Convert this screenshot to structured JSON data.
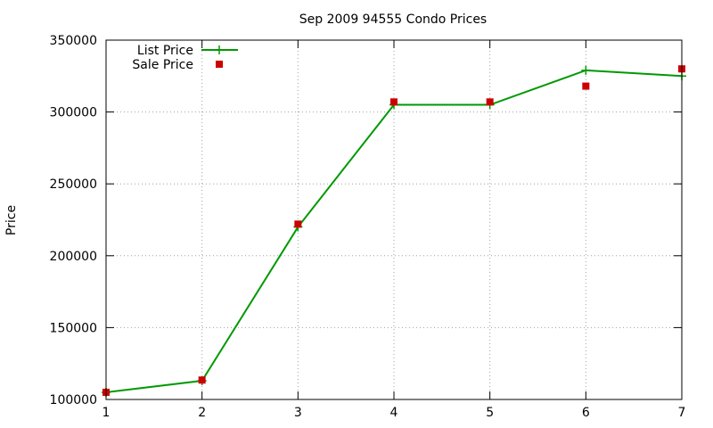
{
  "chart_data": {
    "type": "line",
    "title": "Sep 2009 94555 Condo Prices",
    "xlabel": "",
    "ylabel": "Price",
    "x": [
      1,
      2,
      3,
      4,
      5,
      6,
      7
    ],
    "xlim": [
      1,
      7
    ],
    "ylim": [
      100000,
      350000
    ],
    "xticks": [
      1,
      2,
      3,
      4,
      5,
      6,
      7
    ],
    "yticks": [
      100000,
      150000,
      200000,
      250000,
      300000,
      350000
    ],
    "grid": true,
    "legend_position": "top-left",
    "series": [
      {
        "name": "List Price",
        "style": "line-with-plus-markers",
        "color": "#009900",
        "values": [
          105000,
          113000,
          220000,
          305000,
          305000,
          329000,
          325000
        ]
      },
      {
        "name": "Sale Price",
        "style": "square-markers",
        "color": "#cc0000",
        "values": [
          105000,
          113500,
          222000,
          307000,
          307000,
          318000,
          330000
        ]
      }
    ]
  }
}
